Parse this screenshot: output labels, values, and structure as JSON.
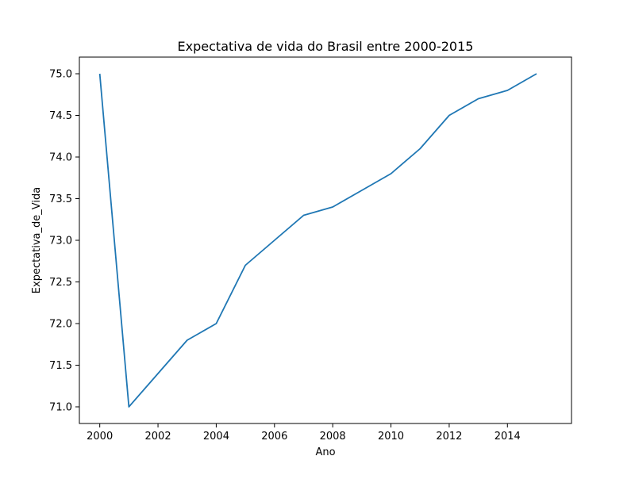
{
  "chart_data": {
    "type": "line",
    "title": "Expectativa de vida do Brasil entre 2000-2015",
    "xlabel": "Ano",
    "ylabel": "Expectativa_de_Vida",
    "xlim": [
      1999.3,
      2016.2
    ],
    "ylim": [
      70.8,
      75.2
    ],
    "xticks": [
      2000,
      2002,
      2004,
      2006,
      2008,
      2010,
      2012,
      2014
    ],
    "xtick_labels": [
      "2000",
      "2002",
      "2004",
      "2006",
      "2008",
      "2010",
      "2012",
      "2014"
    ],
    "yticks": [
      71.0,
      71.5,
      72.0,
      72.5,
      73.0,
      73.5,
      74.0,
      74.5,
      75.0
    ],
    "ytick_labels": [
      "71.0",
      "71.5",
      "72.0",
      "72.5",
      "73.0",
      "73.5",
      "74.0",
      "74.5",
      "75.0"
    ],
    "grid": false,
    "series": [
      {
        "color": "#1f77b4",
        "x": [
          2000,
          2001,
          2002,
          2003,
          2004,
          2005,
          2006,
          2007,
          2008,
          2009,
          2010,
          2011,
          2012,
          2013,
          2014,
          2015
        ],
        "y": [
          75.0,
          71.0,
          71.4,
          71.8,
          72.0,
          72.7,
          73.0,
          73.3,
          73.4,
          73.6,
          73.8,
          74.1,
          74.5,
          74.7,
          74.8,
          75.0
        ]
      }
    ]
  }
}
